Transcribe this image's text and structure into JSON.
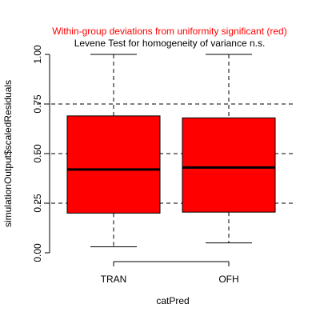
{
  "chart_data": {
    "type": "boxplot",
    "title": "Within-group deviations from uniformity significant (red)",
    "subtitle": "Levene Test for homogeneity of variance n.s.",
    "xlabel": "catPred",
    "ylabel": "simulationOutput$scaledResiduals",
    "ylim": [
      0.0,
      1.0
    ],
    "yticks": [
      0.0,
      0.25,
      0.5,
      0.75,
      1.0
    ],
    "ytick_labels": [
      "0.00",
      "0.25",
      "0.50",
      "0.75",
      "1.00"
    ],
    "reference_lines": [
      0.25,
      0.5,
      0.75
    ],
    "categories": [
      "TRAN",
      "OFH"
    ],
    "groups": [
      {
        "category": "TRAN",
        "min": 0.03,
        "q1": 0.2,
        "median": 0.42,
        "q3": 0.69,
        "max": 1.0
      },
      {
        "category": "OFH",
        "min": 0.05,
        "q1": 0.205,
        "median": 0.43,
        "q3": 0.68,
        "max": 1.0
      }
    ],
    "colors": {
      "box_fill": "#ff0000",
      "title": "#ff0000",
      "subtitle": "#000000",
      "lines": "#000000"
    }
  }
}
